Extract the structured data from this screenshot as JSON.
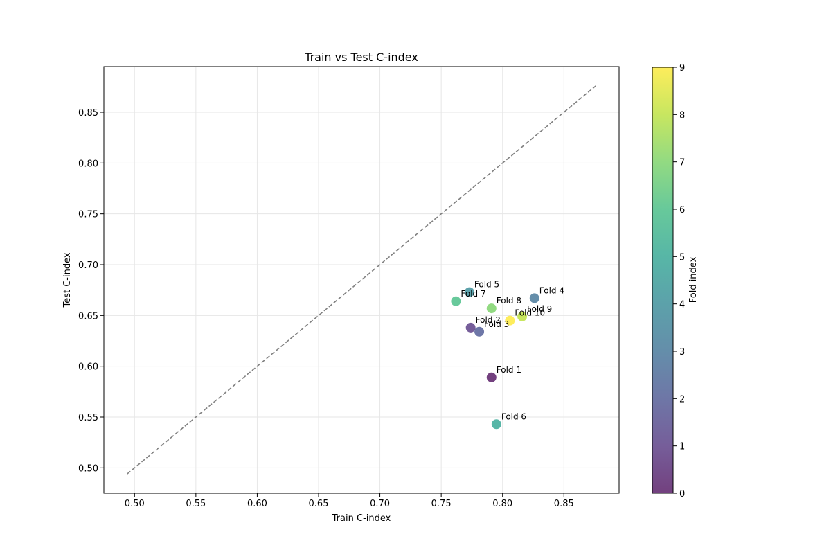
{
  "chart_data": {
    "type": "scatter",
    "title": "Train vs Test C-index",
    "xlabel": "Train C-index",
    "ylabel": "Test C-index",
    "xlim": [
      0.475,
      0.895
    ],
    "ylim": [
      0.475,
      0.895
    ],
    "xticks": [
      0.5,
      0.55,
      0.6,
      0.65,
      0.7,
      0.75,
      0.8,
      0.85
    ],
    "yticks": [
      0.5,
      0.55,
      0.6,
      0.65,
      0.7,
      0.75,
      0.8,
      0.85
    ],
    "grid": true,
    "reference_line": {
      "style": "dashed",
      "color": "#808080",
      "from": [
        0.494,
        0.494
      ],
      "to": [
        0.876,
        0.876
      ]
    },
    "colorbar": {
      "label": "Fold index",
      "min": 0,
      "max": 9,
      "ticks": [
        0,
        1,
        2,
        3,
        4,
        5,
        6,
        7,
        8,
        9
      ],
      "colormap": "viridis"
    },
    "points": [
      {
        "label": "Fold 1",
        "fold_index": 0,
        "x": 0.791,
        "y": 0.589
      },
      {
        "label": "Fold 2",
        "fold_index": 1,
        "x": 0.774,
        "y": 0.638
      },
      {
        "label": "Fold 3",
        "fold_index": 2,
        "x": 0.781,
        "y": 0.634
      },
      {
        "label": "Fold 4",
        "fold_index": 3,
        "x": 0.826,
        "y": 0.667
      },
      {
        "label": "Fold 5",
        "fold_index": 4,
        "x": 0.773,
        "y": 0.673
      },
      {
        "label": "Fold 6",
        "fold_index": 5,
        "x": 0.795,
        "y": 0.543
      },
      {
        "label": "Fold 7",
        "fold_index": 6,
        "x": 0.762,
        "y": 0.664
      },
      {
        "label": "Fold 8",
        "fold_index": 7,
        "x": 0.791,
        "y": 0.657
      },
      {
        "label": "Fold 9",
        "fold_index": 8,
        "x": 0.816,
        "y": 0.649
      },
      {
        "label": "Fold 10",
        "fold_index": 9,
        "x": 0.806,
        "y": 0.645
      }
    ]
  }
}
